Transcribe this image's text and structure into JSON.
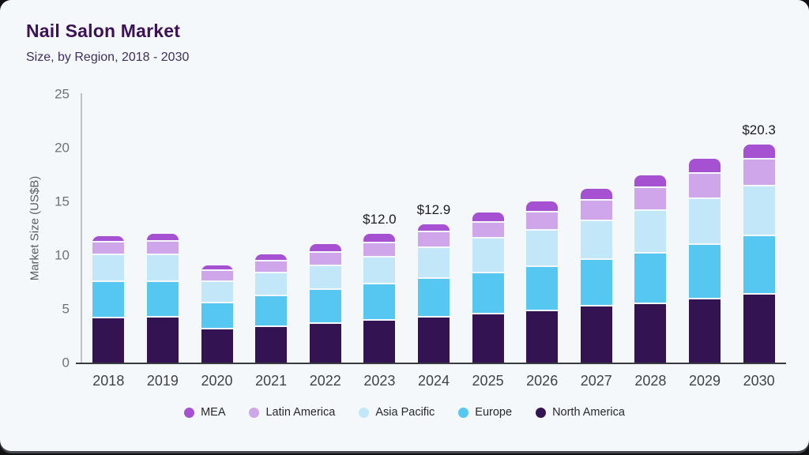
{
  "header": {
    "title": "Nail Salon Market",
    "subtitle": "Size, by Region, 2018 - 2030"
  },
  "chart_data": {
    "type": "bar",
    "stacked": true,
    "title": "Nail Salon Market",
    "subtitle": "Size, by Region, 2018 - 2030",
    "xlabel": "",
    "ylabel": "Market Size (US$B)",
    "ylim": [
      0,
      25
    ],
    "yticks": [
      0,
      5,
      10,
      15,
      20,
      25
    ],
    "grid": false,
    "legend_position": "bottom",
    "categories": [
      "2018",
      "2019",
      "2020",
      "2021",
      "2022",
      "2023",
      "2024",
      "2025",
      "2026",
      "2027",
      "2028",
      "2029",
      "2030"
    ],
    "series": [
      {
        "name": "North America",
        "color": "#341352",
        "values": [
          4.1,
          4.2,
          3.1,
          3.3,
          3.6,
          3.9,
          4.2,
          4.5,
          4.8,
          5.2,
          5.45,
          5.85,
          6.3
        ]
      },
      {
        "name": "Europe",
        "color": "#56c7f0",
        "values": [
          3.4,
          3.3,
          2.45,
          2.9,
          3.15,
          3.35,
          3.6,
          3.8,
          4.1,
          4.35,
          4.7,
          5.1,
          5.45
        ]
      },
      {
        "name": "Asia Pacific",
        "color": "#c1e7f8",
        "values": [
          2.5,
          2.5,
          1.95,
          2.1,
          2.25,
          2.55,
          2.85,
          3.25,
          3.4,
          3.6,
          4.0,
          4.3,
          4.65
        ]
      },
      {
        "name": "Latin America",
        "color": "#cfa6e9",
        "values": [
          1.2,
          1.25,
          1.0,
          1.15,
          1.25,
          1.3,
          1.5,
          1.5,
          1.65,
          1.95,
          2.1,
          2.35,
          2.5
        ]
      },
      {
        "name": "MEA",
        "color": "#a551d1",
        "values": [
          0.6,
          0.75,
          0.55,
          0.65,
          0.75,
          0.9,
          0.75,
          0.9,
          1.05,
          1.05,
          1.2,
          1.35,
          1.4
        ]
      }
    ],
    "totals": [
      11.8,
      12.0,
      9.05,
      10.1,
      11.0,
      12.0,
      12.9,
      13.95,
      15.0,
      16.15,
      17.45,
      18.95,
      20.3
    ],
    "value_labels": {
      "2023": "$12.0",
      "2024": "$12.9",
      "2030": "$20.3"
    },
    "legend_order": [
      "MEA",
      "Latin America",
      "Asia Pacific",
      "Europe",
      "North America"
    ],
    "colors_meta": {
      "card_background": "#f5f8fb",
      "title_text": "#3d1156",
      "axis_line_y": "#bdc3c9",
      "axis_line_x": "#383c41",
      "tick_text": "#6e7378"
    }
  }
}
